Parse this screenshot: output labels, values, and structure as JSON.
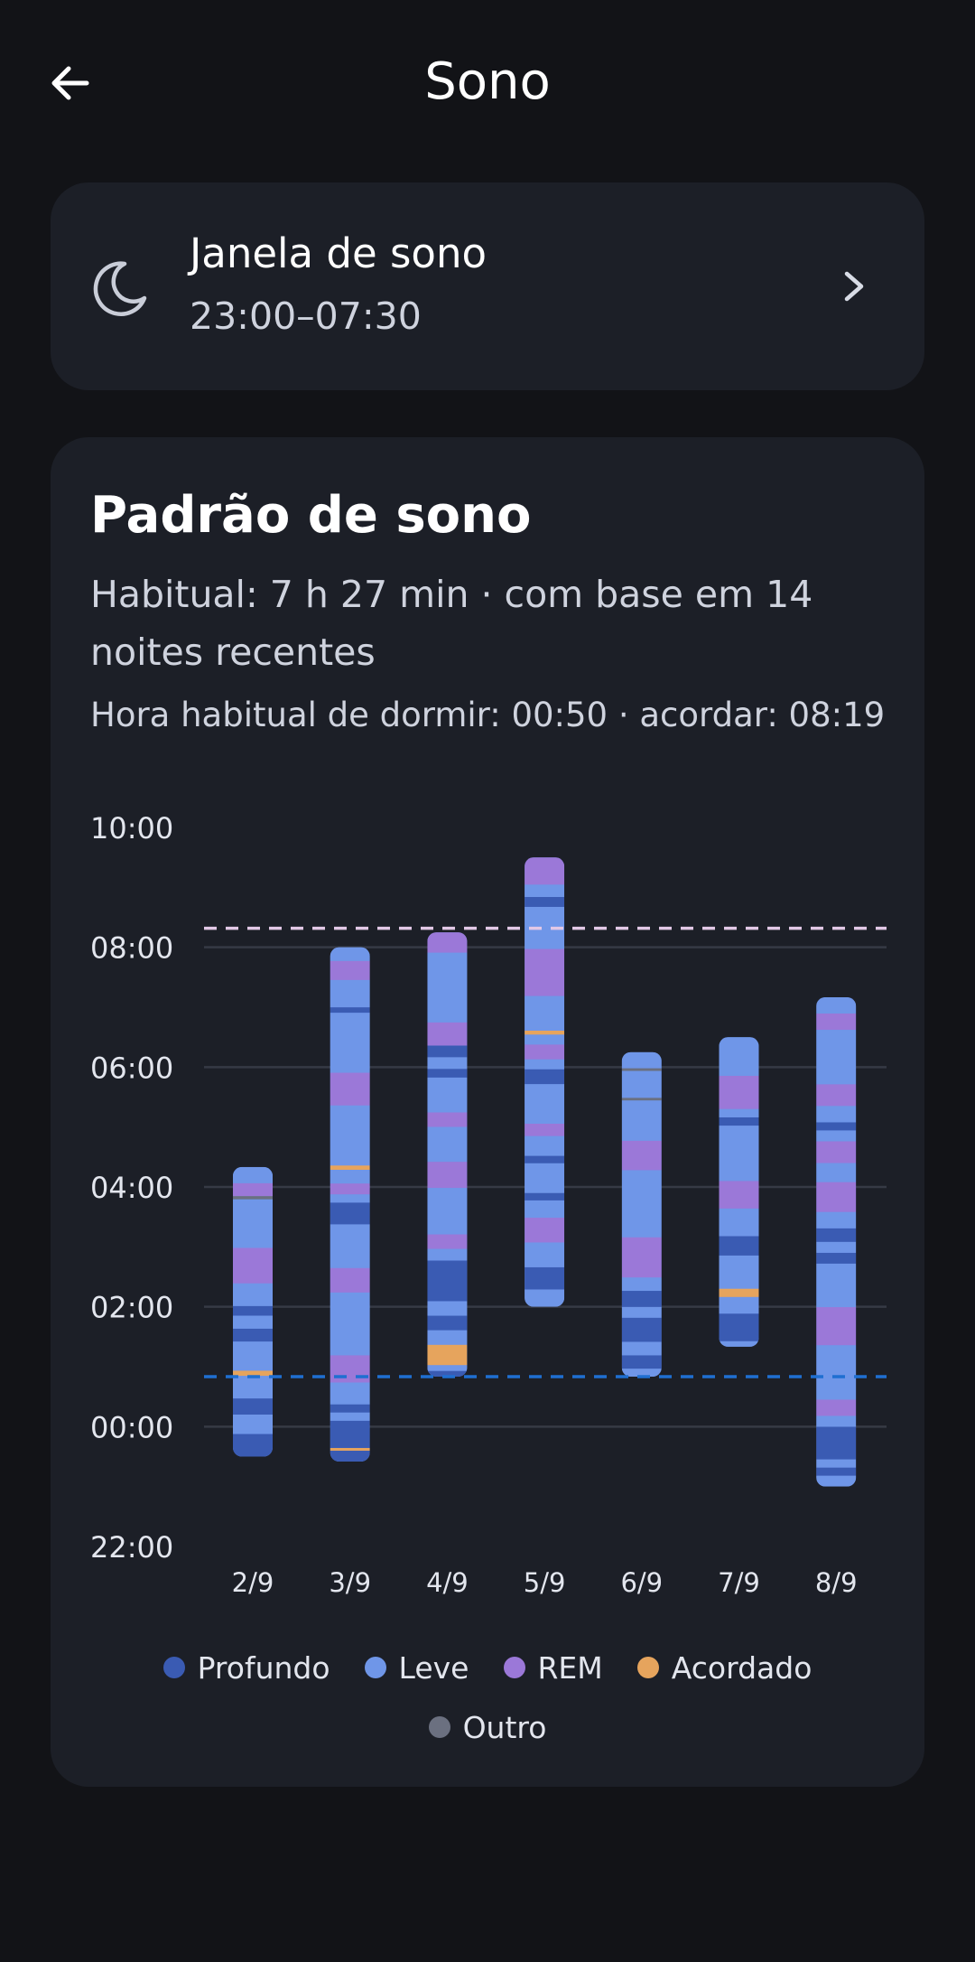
{
  "header": {
    "title": "Sono",
    "back_icon": "arrow-left-icon"
  },
  "sleep_window": {
    "icon": "moon-icon",
    "title": "Janela de sono",
    "range": "23:00–07:30",
    "chevron_icon": "chevron-right-icon"
  },
  "pattern": {
    "title": "Padrão de sono",
    "summary": "Habitual: 7 h 27 min · com base em 14 noites recentes",
    "habits": "Hora habitual de dormir: 00:50 · acordar: 08:19"
  },
  "colors": {
    "deep": "#3a5bb3",
    "light": "#6f96e8",
    "rem": "#9b78d8",
    "awake": "#e6a45d",
    "other": "#6b7080",
    "bedtime_line": "#1f6fd1",
    "wake_line": "#e2c8e6"
  },
  "chart_data": {
    "type": "bar",
    "subtype": "stacked-range",
    "y_tick_labels": [
      "10:00",
      "08:00",
      "06:00",
      "04:00",
      "02:00",
      "00:00",
      "22:00"
    ],
    "y_range_hours_from_22": [
      0,
      12
    ],
    "grid": "horizontal",
    "categories": [
      "2/9",
      "3/9",
      "4/9",
      "5/9",
      "6/9",
      "7/9",
      "8/9"
    ],
    "reference_lines": [
      {
        "value": "00:50",
        "style": "dashed",
        "color": "#1f6fd1"
      },
      {
        "value": "08:19",
        "style": "dashed",
        "color": "#e2c8e6"
      }
    ],
    "legend": [
      {
        "key": "deep",
        "label": "Profundo",
        "color": "#3a5bb3"
      },
      {
        "key": "light",
        "label": "Leve",
        "color": "#6f96e8"
      },
      {
        "key": "rem",
        "label": "REM",
        "color": "#9b78d8"
      },
      {
        "key": "awake",
        "label": "Acordado",
        "color": "#e6a45d"
      },
      {
        "key": "other",
        "label": "Outro",
        "color": "#6b7080"
      }
    ],
    "nights": [
      {
        "date": "2/9",
        "start": "23:30",
        "end": "04:20",
        "segments": [
          [
            "deep",
            0.35
          ],
          [
            "light",
            0.3
          ],
          [
            "deep",
            0.25
          ],
          [
            "light",
            0.35
          ],
          [
            "awake",
            0.08
          ],
          [
            "light",
            0.45
          ],
          [
            "deep",
            0.2
          ],
          [
            "light",
            0.2
          ],
          [
            "deep",
            0.15
          ],
          [
            "light",
            0.35
          ],
          [
            "rem",
            0.55
          ],
          [
            "light",
            0.75
          ],
          [
            "other",
            0.05
          ],
          [
            "rem",
            0.2
          ],
          [
            "light",
            0.25
          ]
        ]
      },
      {
        "date": "3/9",
        "start": "23:25",
        "end": "08:00",
        "segments": [
          [
            "deep",
            0.2
          ],
          [
            "awake",
            0.05
          ],
          [
            "deep",
            0.5
          ],
          [
            "light",
            0.15
          ],
          [
            "deep",
            0.15
          ],
          [
            "light",
            0.4
          ],
          [
            "rem",
            0.5
          ],
          [
            "light",
            1.15
          ],
          [
            "rem",
            0.45
          ],
          [
            "light",
            0.8
          ],
          [
            "deep",
            0.4
          ],
          [
            "light",
            0.15
          ],
          [
            "rem",
            0.2
          ],
          [
            "light",
            0.25
          ],
          [
            "awake",
            0.08
          ],
          [
            "light",
            1.1
          ],
          [
            "rem",
            0.6
          ],
          [
            "light",
            1.1
          ],
          [
            "deep",
            0.1
          ],
          [
            "light",
            0.5
          ],
          [
            "rem",
            0.35
          ],
          [
            "light",
            0.25
          ]
        ]
      },
      {
        "date": "4/9",
        "start": "00:50",
        "end": "08:15",
        "segments": [
          [
            "deep",
            0.1
          ],
          [
            "light",
            0.1
          ],
          [
            "awake",
            0.35
          ],
          [
            "light",
            0.25
          ],
          [
            "deep",
            0.25
          ],
          [
            "light",
            0.25
          ],
          [
            "deep",
            0.7
          ],
          [
            "light",
            0.2
          ],
          [
            "rem",
            0.25
          ],
          [
            "light",
            0.8
          ],
          [
            "rem",
            0.45
          ],
          [
            "light",
            0.6
          ],
          [
            "rem",
            0.25
          ],
          [
            "light",
            0.6
          ],
          [
            "deep",
            0.15
          ],
          [
            "light",
            0.2
          ],
          [
            "deep",
            0.2
          ],
          [
            "rem",
            0.4
          ],
          [
            "light",
            1.2
          ],
          [
            "rem",
            0.35
          ]
        ]
      },
      {
        "date": "5/9",
        "start": "02:00",
        "end": "09:30",
        "segments": [
          [
            "light",
            0.35
          ],
          [
            "deep",
            0.45
          ],
          [
            "light",
            0.5
          ],
          [
            "rem",
            0.5
          ],
          [
            "light",
            0.35
          ],
          [
            "deep",
            0.15
          ],
          [
            "light",
            0.6
          ],
          [
            "deep",
            0.15
          ],
          [
            "light",
            0.4
          ],
          [
            "rem",
            0.25
          ],
          [
            "light",
            0.8
          ],
          [
            "deep",
            0.3
          ],
          [
            "light",
            0.2
          ],
          [
            "rem",
            0.3
          ],
          [
            "light",
            0.2
          ],
          [
            "awake",
            0.08
          ],
          [
            "light",
            0.7
          ],
          [
            "rem",
            0.95
          ],
          [
            "light",
            0.85
          ],
          [
            "deep",
            0.2
          ],
          [
            "light",
            0.25
          ],
          [
            "rem",
            0.55
          ]
        ]
      },
      {
        "date": "6/9",
        "start": "00:50",
        "end": "06:15",
        "segments": [
          [
            "light",
            0.15
          ],
          [
            "deep",
            0.25
          ],
          [
            "light",
            0.25
          ],
          [
            "deep",
            0.45
          ],
          [
            "light",
            0.2
          ],
          [
            "deep",
            0.3
          ],
          [
            "light",
            0.25
          ],
          [
            "rem",
            0.75
          ],
          [
            "light",
            1.25
          ],
          [
            "rem",
            0.55
          ],
          [
            "light",
            0.75
          ],
          [
            "other",
            0.05
          ],
          [
            "light",
            0.5
          ],
          [
            "other",
            0.05
          ],
          [
            "light",
            0.3
          ]
        ]
      },
      {
        "date": "7/9",
        "start": "01:20",
        "end": "06:30",
        "segments": [
          [
            "light",
            0.1
          ],
          [
            "deep",
            0.5
          ],
          [
            "light",
            0.3
          ],
          [
            "awake",
            0.15
          ],
          [
            "light",
            0.6
          ],
          [
            "deep",
            0.35
          ],
          [
            "light",
            0.5
          ],
          [
            "rem",
            0.5
          ],
          [
            "light",
            1.0
          ],
          [
            "deep",
            0.15
          ],
          [
            "light",
            0.15
          ],
          [
            "rem",
            0.6
          ],
          [
            "light",
            0.7
          ]
        ]
      },
      {
        "date": "8/9",
        "start": "23:00",
        "end": "07:10",
        "segments": [
          [
            "light",
            0.2
          ],
          [
            "deep",
            0.15
          ],
          [
            "light",
            0.15
          ],
          [
            "deep",
            0.6
          ],
          [
            "light",
            0.2
          ],
          [
            "rem",
            0.3
          ],
          [
            "light",
            1.0
          ],
          [
            "rem",
            0.7
          ],
          [
            "light",
            0.8
          ],
          [
            "deep",
            0.2
          ],
          [
            "light",
            0.2
          ],
          [
            "deep",
            0.25
          ],
          [
            "light",
            0.3
          ],
          [
            "rem",
            0.55
          ],
          [
            "light",
            0.35
          ],
          [
            "rem",
            0.4
          ],
          [
            "light",
            0.2
          ],
          [
            "deep",
            0.15
          ],
          [
            "light",
            0.3
          ],
          [
            "rem",
            0.4
          ],
          [
            "light",
            1.0
          ],
          [
            "rem",
            0.3
          ],
          [
            "light",
            0.3
          ]
        ]
      }
    ]
  }
}
